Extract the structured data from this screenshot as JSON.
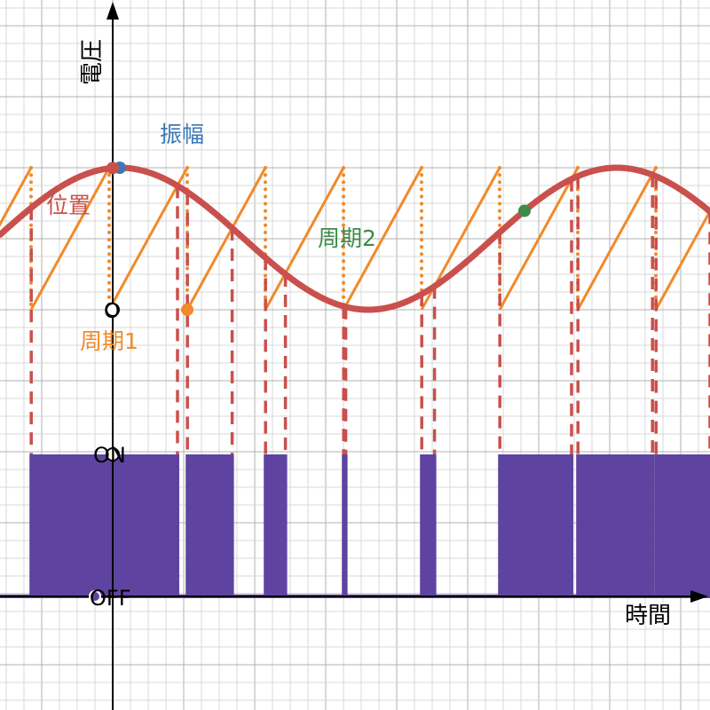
{
  "labels": {
    "y_axis": "電圧",
    "x_axis": "時間",
    "amplitude": "振幅",
    "position": "位置",
    "period1": "周期1",
    "period2": "周期2",
    "origin": "O",
    "on": "ON",
    "off": "OFF"
  },
  "colors": {
    "sine": "#c9504c",
    "sawtooth": "#f08a2a",
    "pwm": "#5e44a0",
    "amplitude_point": "#3b78b5",
    "period2_point": "#3b8c4a",
    "grid_minor": "#d8d8d8",
    "grid_major": "#b0b0b0",
    "axis": "#000000"
  },
  "signal": {
    "sine_period": 7,
    "sine_phase": -1.65,
    "sawtooth_period": 1.1,
    "sawtooth_phase": -0.05,
    "comparator": "PWM ON when sine > sawtooth"
  }
}
